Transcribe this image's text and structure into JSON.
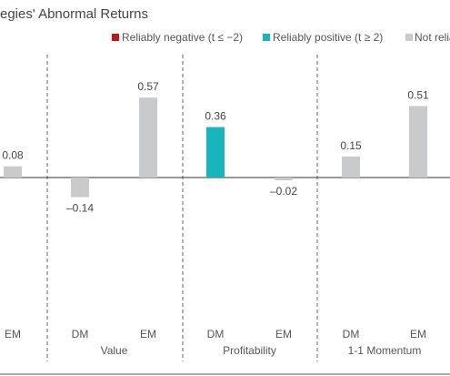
{
  "chart_data": {
    "type": "bar",
    "title": "egies' Abnormal Returns",
    "legend": [
      {
        "label": "Reliably negative (t ≤ −2)",
        "color": "#c0161c"
      },
      {
        "label": "Reliably positive (t ≥ 2)",
        "color": "#18b5bd"
      },
      {
        "label": "Not relia",
        "color": "#c8cacc"
      }
    ],
    "bars": [
      {
        "label": "EM",
        "group": "",
        "value": 0.08,
        "display": "0.08",
        "color": "#c8cacc"
      },
      {
        "label": "DM",
        "group": "Value",
        "value": -0.14,
        "display": "–0.14",
        "color": "#c8cacc"
      },
      {
        "label": "EM",
        "group": "Value",
        "value": 0.57,
        "display": "0.57",
        "color": "#c8cacc"
      },
      {
        "label": "DM",
        "group": "Profitability",
        "value": 0.36,
        "display": "0.36",
        "color": "#18b5bd"
      },
      {
        "label": "EM",
        "group": "Profitability",
        "value": -0.02,
        "display": "–0.02",
        "color": "#c8cacc"
      },
      {
        "label": "DM",
        "group": "1-1 Momentum",
        "value": 0.15,
        "display": "0.15",
        "color": "#c8cacc"
      },
      {
        "label": "EM",
        "group": "1-1 Momentum",
        "value": 0.51,
        "display": "0.51",
        "color": "#c8cacc"
      }
    ],
    "groups": [
      "Value",
      "Profitability",
      "1-1 Momentum"
    ],
    "ylim": [
      -0.5,
      0.8
    ],
    "grid": false
  }
}
